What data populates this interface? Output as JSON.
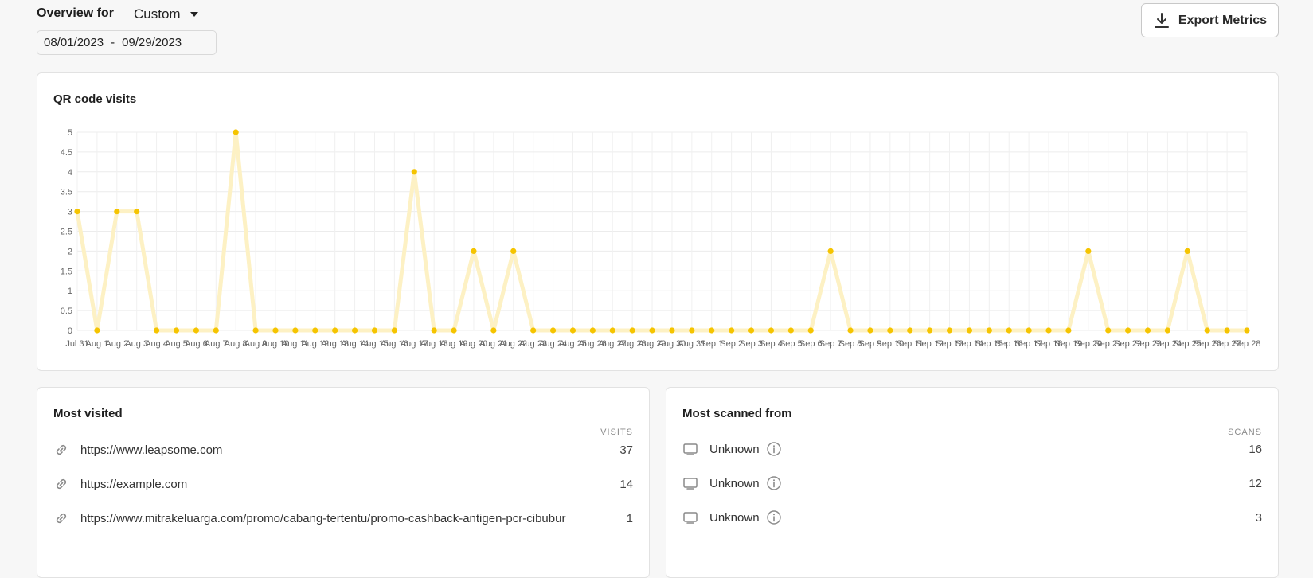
{
  "header": {
    "overview_label": "Overview for",
    "range_value": "Custom",
    "date_start": "08/01/2023",
    "date_sep": "-",
    "date_end": "09/29/2023",
    "export_label": "Export Metrics"
  },
  "chart_card": {
    "title": "QR code visits"
  },
  "chart_data": {
    "type": "line",
    "title": "",
    "xlabel": "",
    "ylabel": "",
    "ylim": [
      0,
      5
    ],
    "yticks": [
      "0",
      "0.5",
      "1",
      "1.5",
      "2",
      "2.5",
      "3",
      "3.5",
      "4",
      "4.5",
      "5"
    ],
    "grid": true,
    "series_color": "#f5c400",
    "line_color": "#fdf1c4",
    "categories": [
      "Jul 31",
      "Aug 1",
      "Aug 2",
      "Aug 3",
      "Aug 4",
      "Aug 5",
      "Aug 6",
      "Aug 7",
      "Aug 8",
      "Aug 9",
      "Aug 10",
      "Aug 11",
      "Aug 12",
      "Aug 13",
      "Aug 14",
      "Aug 15",
      "Aug 16",
      "Aug 17",
      "Aug 18",
      "Aug 19",
      "Aug 20",
      "Aug 21",
      "Aug 22",
      "Aug 23",
      "Aug 24",
      "Aug 25",
      "Aug 26",
      "Aug 27",
      "Aug 28",
      "Aug 29",
      "Aug 30",
      "Aug 31",
      "Sep 1",
      "Sep 2",
      "Sep 3",
      "Sep 4",
      "Sep 5",
      "Sep 6",
      "Sep 7",
      "Sep 8",
      "Sep 9",
      "Sep 10",
      "Sep 11",
      "Sep 12",
      "Sep 13",
      "Sep 14",
      "Sep 15",
      "Sep 16",
      "Sep 17",
      "Sep 18",
      "Sep 19",
      "Sep 20",
      "Sep 21",
      "Sep 22",
      "Sep 23",
      "Sep 24",
      "Sep 25",
      "Sep 26",
      "Sep 27",
      "Sep 28"
    ],
    "values": [
      3,
      0,
      3,
      3,
      0,
      0,
      0,
      0,
      5,
      0,
      0,
      0,
      0,
      0,
      0,
      0,
      0,
      4,
      0,
      0,
      2,
      0,
      2,
      0,
      0,
      0,
      0,
      0,
      0,
      0,
      0,
      0,
      0,
      0,
      0,
      0,
      0,
      0,
      2,
      0,
      0,
      0,
      0,
      0,
      0,
      0,
      0,
      0,
      0,
      0,
      0,
      2,
      0,
      0,
      0,
      0,
      2,
      0,
      0,
      0
    ]
  },
  "most_visited": {
    "title": "Most visited",
    "column": "VISITS",
    "rows": [
      {
        "icon": "link-icon",
        "url": "https://www.leapsome.com",
        "count": "37"
      },
      {
        "icon": "link-icon",
        "url": "https://example.com",
        "count": "14"
      },
      {
        "icon": "link-icon",
        "url": "https://www.mitrakeluarga.com/promo/cabang-tertentu/promo-cashback-antigen-pcr-cibubur",
        "count": "1"
      }
    ]
  },
  "most_scanned": {
    "title": "Most scanned from",
    "column": "SCANS",
    "rows": [
      {
        "icon": "monitor-icon",
        "label": "Unknown",
        "count": "16"
      },
      {
        "icon": "monitor-icon",
        "label": "Unknown",
        "count": "12"
      },
      {
        "icon": "monitor-icon",
        "label": "Unknown",
        "count": "3"
      }
    ]
  }
}
